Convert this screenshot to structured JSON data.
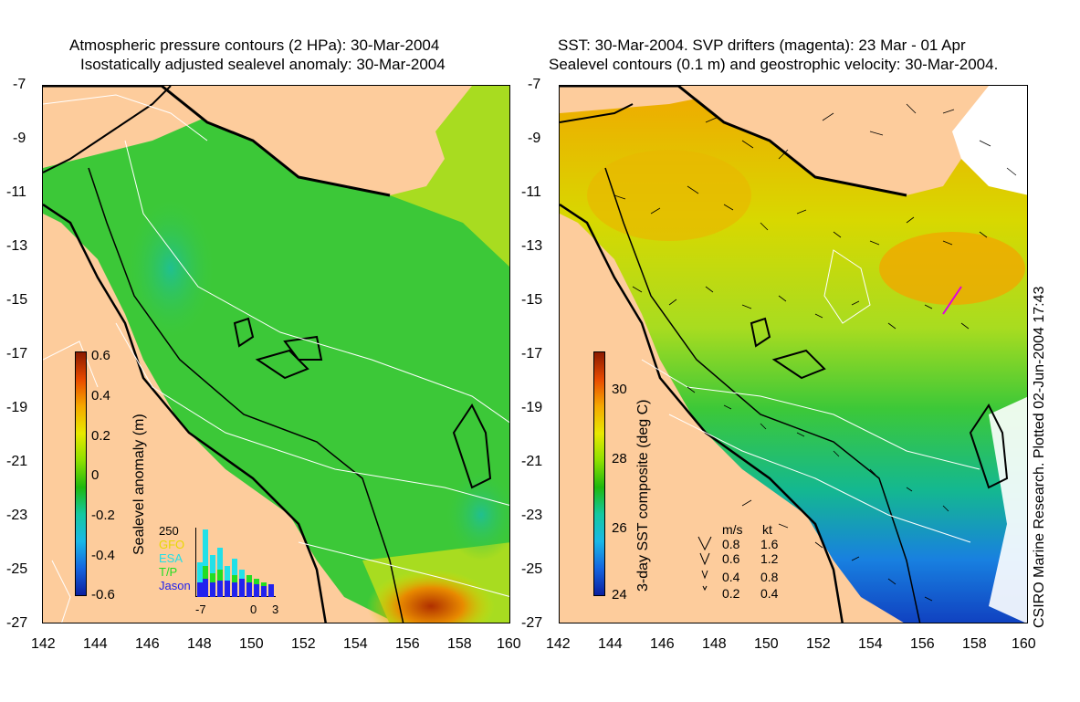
{
  "left_panel": {
    "title_line1": "Atmospheric pressure contours (2 HPa): 30-Mar-2004",
    "title_line2": "Isostatically adjusted sealevel anomaly: 30-Mar-2004",
    "colorbar_label": "Sealevel anomaly (m)",
    "colorbar_ticks": [
      "0.6",
      "0.4",
      "0.2",
      "0",
      "-0.2",
      "-0.4",
      "-0.6"
    ],
    "colorbar_colors": [
      "#8b1a00",
      "#e84a00",
      "#f5a800",
      "#e8e800",
      "#8fe000",
      "#1fb80e",
      "#14c8a0",
      "#19b8e6",
      "#1465e0",
      "#0a1fa0"
    ],
    "inset": {
      "count_label": "250",
      "legend": [
        {
          "name": "GFO",
          "color": "#e8d800"
        },
        {
          "name": "ESA",
          "color": "#22e0e8"
        },
        {
          "name": "T/P",
          "color": "#22dd22"
        },
        {
          "name": "Jason",
          "color": "#2222ee"
        }
      ],
      "x_ticks": [
        "-7",
        "0",
        "3"
      ]
    }
  },
  "right_panel": {
    "title_line1": "SST: 30-Mar-2004. SVP drifters (magenta): 23 Mar - 01 Apr",
    "title_line2": "Sealevel contours (0.1 m) and geostrophic velocity: 30-Mar-2004.",
    "colorbar_label": "3-day SST composite (deg C)",
    "colorbar_ticks": [
      "30",
      "28",
      "26",
      "24"
    ],
    "colorbar_colors": [
      "#8b1a00",
      "#e84a00",
      "#f5a800",
      "#e8e800",
      "#8fe000",
      "#1fb80e",
      "#14c8a0",
      "#19b8e6",
      "#1465e0",
      "#0a1fa0"
    ],
    "velocity_legend": {
      "header_ms": "m/s",
      "header_kt": "kt",
      "rows": [
        {
          "ms": "0.8",
          "kt": "1.6"
        },
        {
          "ms": "0.6",
          "kt": "1.2"
        },
        {
          "ms": "0.4",
          "kt": "0.8"
        },
        {
          "ms": "0.2",
          "kt": "0.4"
        }
      ]
    }
  },
  "axes": {
    "y_ticks": [
      "-7",
      "-9",
      "-11",
      "-13",
      "-15",
      "-17",
      "-19",
      "-21",
      "-23",
      "-25",
      "-27"
    ],
    "x_ticks": [
      "142",
      "144",
      "146",
      "148",
      "150",
      "152",
      "154",
      "156",
      "158",
      "160"
    ]
  },
  "credit": "CSIRO Marine Research. Plotted 02-Jun-2004 17:43",
  "colors": {
    "land": "#fdcc9c",
    "ocean_green": "#3cc838",
    "coast": "#000000",
    "drifter": "#e000e0"
  }
}
